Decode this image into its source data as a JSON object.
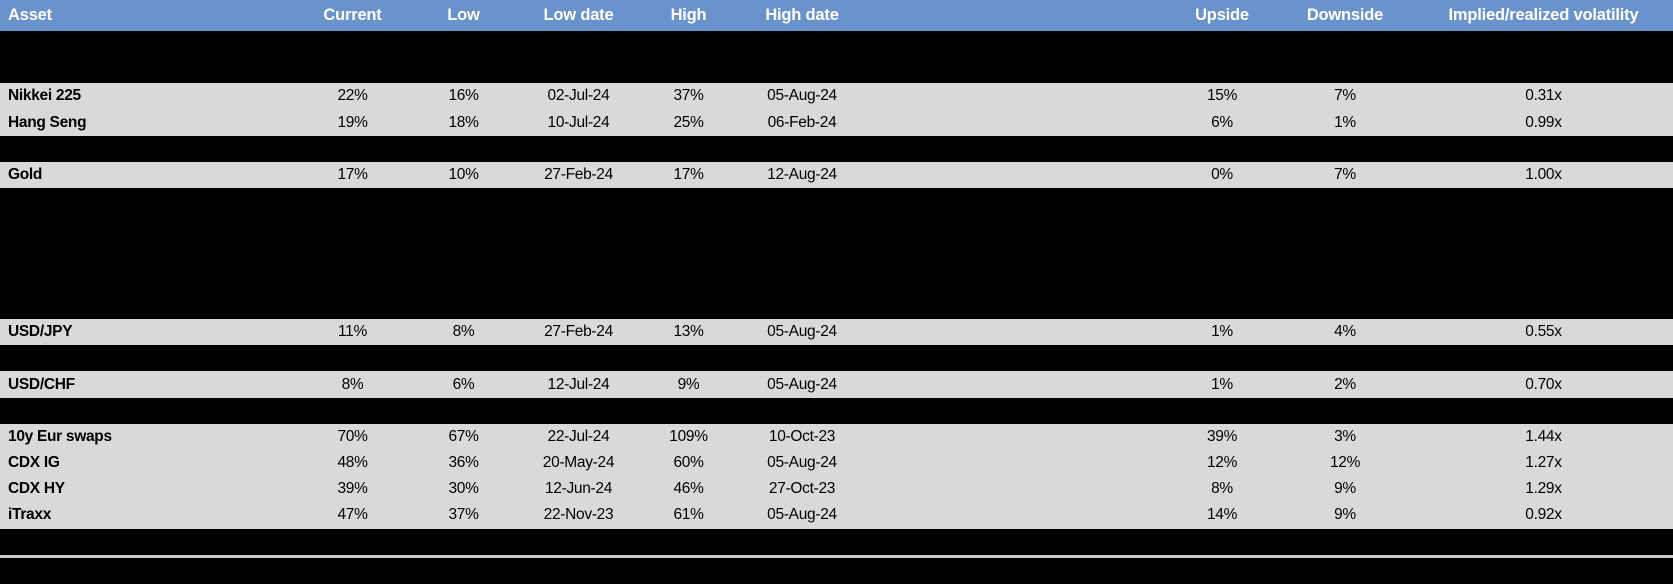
{
  "columns": [
    {
      "key": "asset",
      "label": "Asset"
    },
    {
      "key": "current",
      "label": "Current"
    },
    {
      "key": "low",
      "label": "Low"
    },
    {
      "key": "low_date",
      "label": "Low date"
    },
    {
      "key": "high",
      "label": "High"
    },
    {
      "key": "high_date",
      "label": "High date"
    },
    {
      "key": "range_chart",
      "label": ""
    },
    {
      "key": "upside",
      "label": "Upside"
    },
    {
      "key": "downside",
      "label": "Downside"
    },
    {
      "key": "implied_realized_vol",
      "label": "Implied/realized volatility"
    }
  ],
  "colors": {
    "header_bg": "#6a93cb",
    "header_text": "#ffffff",
    "row_bg": "#d9d9d9",
    "redacted_bg": "#000000",
    "whisker": "#6d99d1",
    "box_fill": "#7aa6d9",
    "box_border": "#5f8ec5",
    "marker": "#a6131a",
    "separator": "#c9c9c9"
  },
  "rows": [
    {
      "kind": "redacted",
      "boxplot": {
        "box_start": 0.06,
        "box_end": 0.21,
        "marker": 0.18
      }
    },
    {
      "kind": "redacted",
      "boxplot": {
        "box_start": 0.14,
        "box_end": 0.4,
        "marker": 0.29
      }
    },
    {
      "kind": "data",
      "asset": "Nikkei 225",
      "current": "22%",
      "low": "16%",
      "low_date": "02-Jul-24",
      "high": "37%",
      "high_date": "05-Aug-24",
      "upside": "15%",
      "downside": "7%",
      "implied_realized_vol": "0.31x",
      "boxplot": {
        "box_start": 0.05,
        "box_end": 0.14,
        "marker": 0.3
      }
    },
    {
      "kind": "data",
      "asset": "Hang Seng",
      "current": "19%",
      "low": "18%",
      "low_date": "10-Jul-24",
      "high": "25%",
      "high_date": "06-Feb-24",
      "upside": "6%",
      "downside": "1%",
      "implied_realized_vol": "0.99x",
      "boxplot": {
        "box_start": 0.37,
        "box_end": 0.68,
        "marker": 0.1
      }
    },
    {
      "kind": "redacted",
      "boxplot": {
        "box_start": 0.145,
        "box_end": 0.29,
        "marker": 0.17
      }
    },
    {
      "kind": "data",
      "asset": "Gold",
      "current": "17%",
      "low": "10%",
      "low_date": "27-Feb-24",
      "high": "17%",
      "high_date": "12-Aug-24",
      "upside": "0%",
      "downside": "7%",
      "implied_realized_vol": "1.00x",
      "boxplot": {
        "box_start": 0.27,
        "box_end": 0.61,
        "marker": 0.98
      }
    },
    {
      "kind": "redacted",
      "boxplot": {
        "box_start": 0.16,
        "box_end": 0.56,
        "marker": 0.29
      }
    },
    {
      "kind": "redacted",
      "boxplot": {
        "box_start": 0.145,
        "box_end": 0.405,
        "marker": 0.44
      }
    },
    {
      "kind": "redacted",
      "boxplot": {
        "box_start": 0.35,
        "box_end": 0.615,
        "marker": 0.36
      }
    },
    {
      "kind": "redacted",
      "boxplot": {
        "box_start": 0.215,
        "box_end": 0.66,
        "marker": 0.5
      }
    },
    {
      "kind": "redacted",
      "boxplot": {
        "box_start": 0.215,
        "box_end": 0.655,
        "marker": 0.615
      }
    },
    {
      "kind": "data",
      "asset": "USD/JPY",
      "current": "11%",
      "low": "8%",
      "low_date": "27-Feb-24",
      "high": "13%",
      "high_date": "05-Aug-24",
      "upside": "1%",
      "downside": "4%",
      "implied_realized_vol": "0.55x",
      "boxplot": {
        "box_start": 0.2,
        "box_end": 0.385,
        "marker": 0.76
      }
    },
    {
      "kind": "redacted",
      "boxplot": {
        "box_start": 0.215,
        "box_end": 0.625,
        "marker": 0.46
      }
    },
    {
      "kind": "data",
      "asset": "USD/CHF",
      "current": "8%",
      "low": "6%",
      "low_date": "12-Jul-24",
      "high": "9%",
      "high_date": "05-Aug-24",
      "upside": "1%",
      "downside": "2%",
      "implied_realized_vol": "0.70x",
      "boxplot": {
        "box_start": 0.17,
        "box_end": 0.44,
        "marker": 0.76
      }
    },
    {
      "kind": "redacted",
      "boxplot": {
        "box_start": 0.205,
        "box_end": 0.565,
        "marker": 0.185
      }
    },
    {
      "kind": "data",
      "asset": "10y Eur swaps",
      "current": "70%",
      "low": "67%",
      "low_date": "22-Jul-24",
      "high": "109%",
      "high_date": "10-Oct-23",
      "upside": "39%",
      "downside": "3%",
      "implied_realized_vol": "1.44x",
      "boxplot": {
        "box_start": 0.24,
        "box_end": 0.715,
        "marker": 0.085
      }
    },
    {
      "kind": "data",
      "asset": "CDX IG",
      "current": "48%",
      "low": "36%",
      "low_date": "20-May-24",
      "high": "60%",
      "high_date": "05-Aug-24",
      "upside": "12%",
      "downside": "12%",
      "implied_realized_vol": "1.27x",
      "boxplot": {
        "box_start": 0.165,
        "box_end": 0.33,
        "marker": 0.5
      }
    },
    {
      "kind": "data",
      "asset": "CDX HY",
      "current": "39%",
      "low": "30%",
      "low_date": "12-Jun-24",
      "high": "46%",
      "high_date": "27-Oct-23",
      "upside": "8%",
      "downside": "9%",
      "implied_realized_vol": "1.29x",
      "boxplot": {
        "box_start": 0.225,
        "box_end": 0.495,
        "marker": 0.54
      }
    },
    {
      "kind": "data",
      "asset": "iTraxx",
      "current": "47%",
      "low": "37%",
      "low_date": "22-Nov-23",
      "high": "61%",
      "high_date": "05-Aug-24",
      "upside": "14%",
      "downside": "9%",
      "implied_realized_vol": "0.92x",
      "boxplot": {
        "box_start": 0.175,
        "box_end": 0.395,
        "marker": 0.405
      }
    },
    {
      "kind": "redacted",
      "boxplot": {
        "box_start": 0.27,
        "box_end": 0.42,
        "marker": 0.455
      }
    }
  ],
  "chart_data": {
    "type": "table",
    "title": "Asset implied volatility: current level vs low/high range",
    "columns": [
      "Asset",
      "Current",
      "Low",
      "Low date",
      "High",
      "High date",
      "Upside",
      "Downside",
      "Implied/realized volatility"
    ],
    "rows": [
      [
        "Nikkei 225",
        "22%",
        "16%",
        "02-Jul-24",
        "37%",
        "05-Aug-24",
        "15%",
        "7%",
        "0.31x"
      ],
      [
        "Hang Seng",
        "19%",
        "18%",
        "10-Jul-24",
        "25%",
        "06-Feb-24",
        "6%",
        "1%",
        "0.99x"
      ],
      [
        "Gold",
        "17%",
        "10%",
        "27-Feb-24",
        "17%",
        "12-Aug-24",
        "0%",
        "7%",
        "1.00x"
      ],
      [
        "USD/JPY",
        "11%",
        "8%",
        "27-Feb-24",
        "13%",
        "05-Aug-24",
        "1%",
        "4%",
        "0.55x"
      ],
      [
        "USD/CHF",
        "8%",
        "6%",
        "12-Jul-24",
        "9%",
        "05-Aug-24",
        "1%",
        "2%",
        "0.70x"
      ],
      [
        "10y Eur swaps",
        "70%",
        "67%",
        "22-Jul-24",
        "109%",
        "10-Oct-23",
        "39%",
        "3%",
        "1.44x"
      ],
      [
        "CDX IG",
        "48%",
        "36%",
        "20-May-24",
        "60%",
        "05-Aug-24",
        "12%",
        "12%",
        "1.27x"
      ],
      [
        "CDX HY",
        "39%",
        "30%",
        "12-Jun-24",
        "46%",
        "27-Oct-23",
        "8%",
        "9%",
        "1.29x"
      ],
      [
        "iTraxx",
        "47%",
        "37%",
        "22-Nov-23",
        "61%",
        "05-Aug-24",
        "14%",
        "9%",
        "0.92x"
      ]
    ],
    "embedded_boxplot_column": {
      "type": "boxplot",
      "orientation": "horizontal",
      "axis_range": [
        0,
        1
      ],
      "legend_note": "whiskers span the full normalized low-to-high range; blue box = middle band; red diamond = current level",
      "per_row_geometry": [
        {
          "row": "redacted-1",
          "box": [
            0.06,
            0.21
          ],
          "marker": 0.18
        },
        {
          "row": "redacted-2",
          "box": [
            0.14,
            0.4
          ],
          "marker": 0.29
        },
        {
          "row": "Nikkei 225",
          "box": [
            0.05,
            0.14
          ],
          "marker": 0.3
        },
        {
          "row": "Hang Seng",
          "box": [
            0.37,
            0.68
          ],
          "marker": 0.1
        },
        {
          "row": "redacted-3",
          "box": [
            0.145,
            0.29
          ],
          "marker": 0.17
        },
        {
          "row": "Gold",
          "box": [
            0.27,
            0.61
          ],
          "marker": 0.98
        },
        {
          "row": "redacted-4",
          "box": [
            0.16,
            0.56
          ],
          "marker": 0.29
        },
        {
          "row": "redacted-5",
          "box": [
            0.145,
            0.405
          ],
          "marker": 0.44
        },
        {
          "row": "redacted-6",
          "box": [
            0.35,
            0.615
          ],
          "marker": 0.36
        },
        {
          "row": "redacted-7",
          "box": [
            0.215,
            0.66
          ],
          "marker": 0.5
        },
        {
          "row": "redacted-8",
          "box": [
            0.215,
            0.655
          ],
          "marker": 0.615
        },
        {
          "row": "USD/JPY",
          "box": [
            0.2,
            0.385
          ],
          "marker": 0.76
        },
        {
          "row": "redacted-9",
          "box": [
            0.215,
            0.625
          ],
          "marker": 0.46
        },
        {
          "row": "USD/CHF",
          "box": [
            0.17,
            0.44
          ],
          "marker": 0.76
        },
        {
          "row": "redacted-10",
          "box": [
            0.205,
            0.565
          ],
          "marker": 0.185
        },
        {
          "row": "10y Eur swaps",
          "box": [
            0.24,
            0.715
          ],
          "marker": 0.085
        },
        {
          "row": "CDX IG",
          "box": [
            0.165,
            0.33
          ],
          "marker": 0.5
        },
        {
          "row": "CDX HY",
          "box": [
            0.225,
            0.495
          ],
          "marker": 0.54
        },
        {
          "row": "iTraxx",
          "box": [
            0.175,
            0.395
          ],
          "marker": 0.405
        },
        {
          "row": "redacted-11",
          "box": [
            0.27,
            0.42
          ],
          "marker": 0.455
        }
      ]
    }
  }
}
